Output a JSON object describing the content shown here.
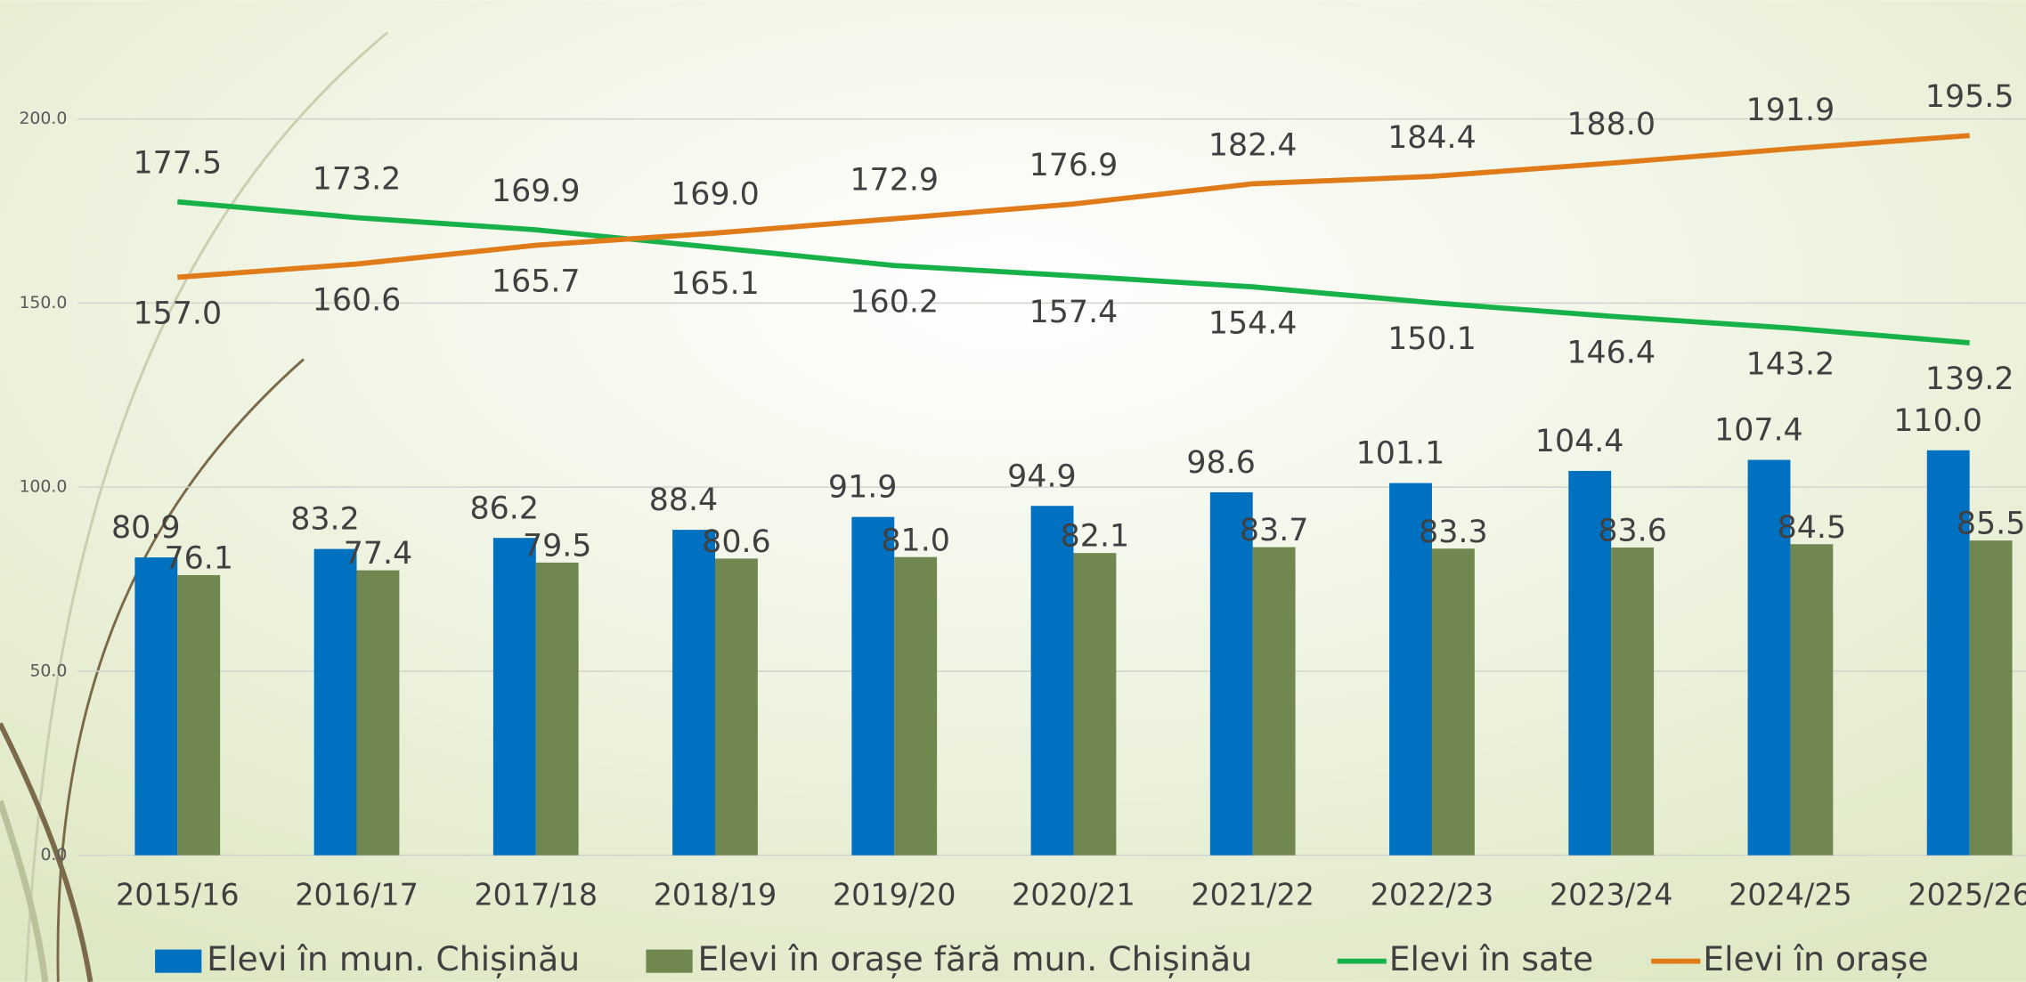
{
  "chart_data": {
    "type": "bar-line",
    "categories": [
      "2015/16",
      "2016/17",
      "2017/18",
      "2018/19",
      "2019/20",
      "2020/21",
      "2021/22",
      "2022/23",
      "2023/24",
      "2024/25",
      "2025/26"
    ],
    "series": [
      {
        "name": "Elevi în mun. Chișinău",
        "type": "bar",
        "color": "#0070c0",
        "values": [
          80.9,
          83.2,
          86.2,
          88.4,
          91.9,
          94.9,
          98.6,
          101.1,
          104.4,
          107.4,
          110.0
        ],
        "value_labels": [
          "80.9",
          "83.2",
          "86.2",
          "88.4",
          "91.9",
          "94.9",
          "98.6",
          "101.1",
          "104.4",
          "107.4",
          "110.0"
        ]
      },
      {
        "name": "Elevi în orașe fără mun. Chișinău",
        "type": "bar",
        "color": "#70884f",
        "values": [
          76.1,
          77.4,
          79.5,
          80.6,
          81.0,
          82.1,
          83.7,
          83.3,
          83.6,
          84.5,
          85.5
        ],
        "value_labels": [
          "76.1",
          "77.4",
          "79.5",
          "80.6",
          "81.0",
          "82.1",
          "83.7",
          "83.3",
          "83.6",
          "84.5",
          "85.5"
        ]
      },
      {
        "name": "Elevi în sate",
        "type": "line",
        "color": "#17b14a",
        "values": [
          177.5,
          173.2,
          169.9,
          165.1,
          160.2,
          157.4,
          154.4,
          150.1,
          146.4,
          143.2,
          139.2
        ],
        "value_labels": [
          "177.5",
          "173.2",
          "169.9",
          "165.1",
          "160.2",
          "157.4",
          "154.4",
          "150.1",
          "146.4",
          "143.2",
          "139.2"
        ]
      },
      {
        "name": "Elevi în orașe",
        "type": "line",
        "color": "#e07b1a",
        "values": [
          157.0,
          160.6,
          165.7,
          169.0,
          172.9,
          176.9,
          182.4,
          184.4,
          188.0,
          191.9,
          195.5
        ],
        "value_labels": [
          "157.0",
          "160.6",
          "165.7",
          "169.0",
          "172.9",
          "176.9",
          "182.4",
          "184.4",
          "188.0",
          "191.9",
          "195.5"
        ]
      }
    ],
    "ylim": [
      0,
      200
    ],
    "yticks": [
      {
        "value": 0,
        "label": "0.0"
      },
      {
        "value": 50,
        "label": "50.0"
      },
      {
        "value": 100,
        "label": "100.0"
      },
      {
        "value": 150,
        "label": "150.0"
      },
      {
        "value": 200,
        "label": "200.0"
      }
    ],
    "grid": true,
    "legend": "bottom"
  }
}
